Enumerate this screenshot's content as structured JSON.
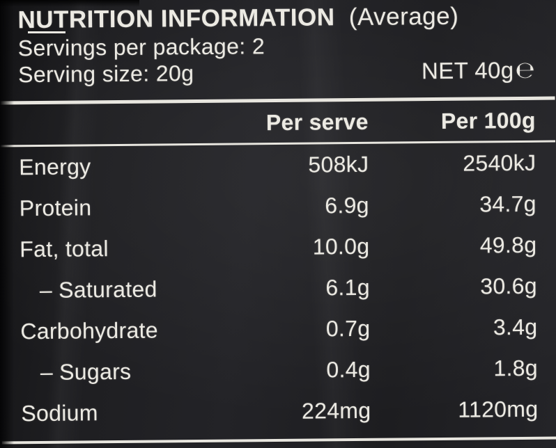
{
  "panel": {
    "title": "NUTRITION INFORMATION",
    "title_suffix": "(Average)",
    "servings_per_package": "Servings per package: 2",
    "serving_size": "Serving size: 20g",
    "net_weight": "NET 40g",
    "estimated_sign": "℮"
  },
  "table": {
    "columns": [
      "Per serve",
      "Per 100g"
    ],
    "rows": [
      {
        "label": "Energy",
        "per_serve": "508kJ",
        "per_100g": "2540kJ"
      },
      {
        "label": "Protein",
        "per_serve": "6.9g",
        "per_100g": "34.7g"
      },
      {
        "label": "Fat, total",
        "per_serve": "10.0g",
        "per_100g": "49.8g"
      },
      {
        "label": "– Saturated",
        "per_serve": "6.1g",
        "per_100g": "30.6g"
      },
      {
        "label": "Carbohydrate",
        "per_serve": "0.7g",
        "per_100g": "3.4g"
      },
      {
        "label": "– Sugars",
        "per_serve": "0.4g",
        "per_100g": "1.8g"
      },
      {
        "label": "Sodium",
        "per_serve": "224mg",
        "per_100g": "1120mg"
      }
    ]
  },
  "colors": {
    "background": "#1e1e21",
    "text": "#eceae3",
    "rule": "#e8e6df"
  }
}
